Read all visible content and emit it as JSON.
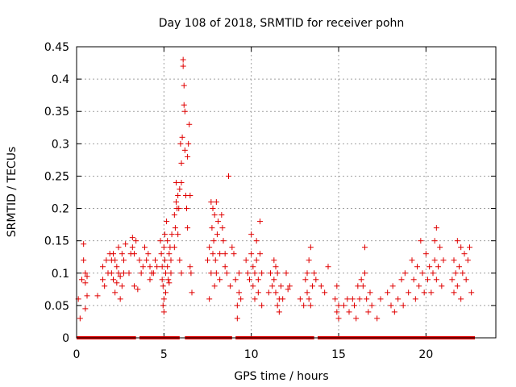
{
  "chart_data": {
    "type": "scatter",
    "title": "Day 108 of 2018, SRMTID for receiver pohn",
    "xlabel": "GPS time / hours",
    "ylabel": "SRMTID / TECUs",
    "xlim": [
      0,
      24
    ],
    "ylim": [
      0,
      0.45
    ],
    "x_ticks": [
      0,
      5,
      10,
      15,
      20
    ],
    "y_ticks": [
      0,
      0.05,
      0.1,
      0.15,
      0.2,
      0.25,
      0.3,
      0.35,
      0.4,
      0.45
    ],
    "grid": true,
    "marker": "+",
    "color": "#e00000",
    "series": [
      {
        "name": "SRMTID",
        "points": [
          [
            0.1,
            0.06
          ],
          [
            0.2,
            0.03
          ],
          [
            0.3,
            0.09
          ],
          [
            0.4,
            0.145
          ],
          [
            0.4,
            0.12
          ],
          [
            0.5,
            0.1
          ],
          [
            0.5,
            0.085
          ],
          [
            0.6,
            0.095
          ],
          [
            0.6,
            0.065
          ],
          [
            0.5,
            0.045
          ],
          [
            1.2,
            0.065
          ],
          [
            1.5,
            0.11
          ],
          [
            1.5,
            0.09
          ],
          [
            1.6,
            0.08
          ],
          [
            1.7,
            0.12
          ],
          [
            1.8,
            0.1
          ],
          [
            1.9,
            0.13
          ],
          [
            2.0,
            0.12
          ],
          [
            2.0,
            0.1
          ],
          [
            2.1,
            0.13
          ],
          [
            2.1,
            0.09
          ],
          [
            2.2,
            0.12
          ],
          [
            2.2,
            0.07
          ],
          [
            2.3,
            0.11
          ],
          [
            2.3,
            0.085
          ],
          [
            2.4,
            0.14
          ],
          [
            2.4,
            0.1
          ],
          [
            2.5,
            0.06
          ],
          [
            2.5,
            0.095
          ],
          [
            2.6,
            0.13
          ],
          [
            2.6,
            0.08
          ],
          [
            2.7,
            0.12
          ],
          [
            2.7,
            0.1
          ],
          [
            2.8,
            0.145
          ],
          [
            3.0,
            0.1
          ],
          [
            3.1,
            0.13
          ],
          [
            3.2,
            0.155
          ],
          [
            3.2,
            0.14
          ],
          [
            3.3,
            0.13
          ],
          [
            3.3,
            0.08
          ],
          [
            3.4,
            0.15
          ],
          [
            3.5,
            0.075
          ],
          [
            3.6,
            0.12
          ],
          [
            3.7,
            0.1
          ],
          [
            3.8,
            0.11
          ],
          [
            3.9,
            0.14
          ],
          [
            4.0,
            0.12
          ],
          [
            4.1,
            0.13
          ],
          [
            4.2,
            0.11
          ],
          [
            4.2,
            0.09
          ],
          [
            4.3,
            0.1
          ],
          [
            4.4,
            0.1
          ],
          [
            4.5,
            0.12
          ],
          [
            4.6,
            0.11
          ],
          [
            4.8,
            0.15
          ],
          [
            4.85,
            0.13
          ],
          [
            4.9,
            0.11
          ],
          [
            4.9,
            0.09
          ],
          [
            4.95,
            0.08
          ],
          [
            4.95,
            0.05
          ],
          [
            5.0,
            0.06
          ],
          [
            5.0,
            0.04
          ],
          [
            5.0,
            0.14
          ],
          [
            5.05,
            0.16
          ],
          [
            5.05,
            0.12
          ],
          [
            5.1,
            0.1
          ],
          [
            5.1,
            0.07
          ],
          [
            5.15,
            0.18
          ],
          [
            5.2,
            0.15
          ],
          [
            5.2,
            0.11
          ],
          [
            5.25,
            0.09
          ],
          [
            5.3,
            0.13
          ],
          [
            5.3,
            0.085
          ],
          [
            5.35,
            0.14
          ],
          [
            5.4,
            0.12
          ],
          [
            5.4,
            0.1
          ],
          [
            5.45,
            0.16
          ],
          [
            5.6,
            0.19
          ],
          [
            5.6,
            0.14
          ],
          [
            5.65,
            0.17
          ],
          [
            5.7,
            0.24
          ],
          [
            5.7,
            0.21
          ],
          [
            5.75,
            0.2
          ],
          [
            5.8,
            0.22
          ],
          [
            5.8,
            0.16
          ],
          [
            5.85,
            0.2
          ],
          [
            5.9,
            0.23
          ],
          [
            5.9,
            0.12
          ],
          [
            5.95,
            0.3
          ],
          [
            6.0,
            0.27
          ],
          [
            6.0,
            0.24
          ],
          [
            6.0,
            0.1
          ],
          [
            6.05,
            0.31
          ],
          [
            6.1,
            0.43
          ],
          [
            6.1,
            0.42
          ],
          [
            6.15,
            0.39
          ],
          [
            6.15,
            0.36
          ],
          [
            6.2,
            0.35
          ],
          [
            6.2,
            0.29
          ],
          [
            6.25,
            0.22
          ],
          [
            6.3,
            0.2
          ],
          [
            6.35,
            0.28
          ],
          [
            6.35,
            0.17
          ],
          [
            6.4,
            0.3
          ],
          [
            6.45,
            0.33
          ],
          [
            6.5,
            0.22
          ],
          [
            6.5,
            0.11
          ],
          [
            6.55,
            0.1
          ],
          [
            6.6,
            0.07
          ],
          [
            7.5,
            0.12
          ],
          [
            7.6,
            0.14
          ],
          [
            7.6,
            0.06
          ],
          [
            7.7,
            0.21
          ],
          [
            7.7,
            0.1
          ],
          [
            7.75,
            0.17
          ],
          [
            7.8,
            0.2
          ],
          [
            7.8,
            0.13
          ],
          [
            7.85,
            0.15
          ],
          [
            7.9,
            0.19
          ],
          [
            7.9,
            0.08
          ],
          [
            7.95,
            0.12
          ],
          [
            8.0,
            0.21
          ],
          [
            8.0,
            0.1
          ],
          [
            8.05,
            0.16
          ],
          [
            8.1,
            0.18
          ],
          [
            8.2,
            0.13
          ],
          [
            8.2,
            0.09
          ],
          [
            8.3,
            0.19
          ],
          [
            8.35,
            0.17
          ],
          [
            8.4,
            0.15
          ],
          [
            8.5,
            0.13
          ],
          [
            8.5,
            0.11
          ],
          [
            8.6,
            0.1
          ],
          [
            8.7,
            0.25
          ],
          [
            8.8,
            0.08
          ],
          [
            8.9,
            0.14
          ],
          [
            9.0,
            0.13
          ],
          [
            9.1,
            0.09
          ],
          [
            9.2,
            0.05
          ],
          [
            9.2,
            0.03
          ],
          [
            9.3,
            0.1
          ],
          [
            9.3,
            0.07
          ],
          [
            9.4,
            0.06
          ],
          [
            9.7,
            0.12
          ],
          [
            9.8,
            0.1
          ],
          [
            9.9,
            0.09
          ],
          [
            10.0,
            0.16
          ],
          [
            10.0,
            0.13
          ],
          [
            10.1,
            0.11
          ],
          [
            10.1,
            0.08
          ],
          [
            10.2,
            0.1
          ],
          [
            10.2,
            0.06
          ],
          [
            10.3,
            0.15
          ],
          [
            10.3,
            0.12
          ],
          [
            10.4,
            0.09
          ],
          [
            10.4,
            0.07
          ],
          [
            10.5,
            0.18
          ],
          [
            10.5,
            0.13
          ],
          [
            10.6,
            0.1
          ],
          [
            10.6,
            0.05
          ],
          [
            11.0,
            0.07
          ],
          [
            11.1,
            0.1
          ],
          [
            11.2,
            0.08
          ],
          [
            11.3,
            0.12
          ],
          [
            11.3,
            0.09
          ],
          [
            11.4,
            0.11
          ],
          [
            11.4,
            0.07
          ],
          [
            11.5,
            0.1
          ],
          [
            11.5,
            0.05
          ],
          [
            11.6,
            0.06
          ],
          [
            11.6,
            0.04
          ],
          [
            11.7,
            0.08
          ],
          [
            11.8,
            0.06
          ],
          [
            12.0,
            0.1
          ],
          [
            12.1,
            0.075
          ],
          [
            12.2,
            0.08
          ],
          [
            12.8,
            0.06
          ],
          [
            13.0,
            0.05
          ],
          [
            13.1,
            0.09
          ],
          [
            13.2,
            0.1
          ],
          [
            13.2,
            0.07
          ],
          [
            13.3,
            0.12
          ],
          [
            13.3,
            0.06
          ],
          [
            13.4,
            0.14
          ],
          [
            13.4,
            0.05
          ],
          [
            13.5,
            0.08
          ],
          [
            13.6,
            0.1
          ],
          [
            13.7,
            0.09
          ],
          [
            14.0,
            0.08
          ],
          [
            14.2,
            0.07
          ],
          [
            14.4,
            0.11
          ],
          [
            14.8,
            0.06
          ],
          [
            14.9,
            0.04
          ],
          [
            14.9,
            0.08
          ],
          [
            15.0,
            0.03
          ],
          [
            15.0,
            0.05
          ],
          [
            15.3,
            0.05
          ],
          [
            15.5,
            0.06
          ],
          [
            15.6,
            0.04
          ],
          [
            15.8,
            0.06
          ],
          [
            15.9,
            0.05
          ],
          [
            16.0,
            0.03
          ],
          [
            16.1,
            0.08
          ],
          [
            16.2,
            0.06
          ],
          [
            16.3,
            0.09
          ],
          [
            16.4,
            0.08
          ],
          [
            16.5,
            0.14
          ],
          [
            16.5,
            0.1
          ],
          [
            16.6,
            0.06
          ],
          [
            16.7,
            0.04
          ],
          [
            16.8,
            0.07
          ],
          [
            16.9,
            0.05
          ],
          [
            17.2,
            0.03
          ],
          [
            17.4,
            0.06
          ],
          [
            17.8,
            0.07
          ],
          [
            18.0,
            0.05
          ],
          [
            18.1,
            0.08
          ],
          [
            18.2,
            0.04
          ],
          [
            18.4,
            0.06
          ],
          [
            18.6,
            0.09
          ],
          [
            18.7,
            0.05
          ],
          [
            18.8,
            0.1
          ],
          [
            19.0,
            0.07
          ],
          [
            19.2,
            0.12
          ],
          [
            19.3,
            0.09
          ],
          [
            19.4,
            0.06
          ],
          [
            19.5,
            0.11
          ],
          [
            19.6,
            0.08
          ],
          [
            19.7,
            0.15
          ],
          [
            19.8,
            0.1
          ],
          [
            19.9,
            0.07
          ],
          [
            20.0,
            0.13
          ],
          [
            20.1,
            0.09
          ],
          [
            20.2,
            0.11
          ],
          [
            20.3,
            0.07
          ],
          [
            20.4,
            0.1
          ],
          [
            20.5,
            0.15
          ],
          [
            20.5,
            0.12
          ],
          [
            20.6,
            0.17
          ],
          [
            20.6,
            0.09
          ],
          [
            20.7,
            0.11
          ],
          [
            20.8,
            0.14
          ],
          [
            20.9,
            0.08
          ],
          [
            21.0,
            0.12
          ],
          [
            21.5,
            0.09
          ],
          [
            21.6,
            0.12
          ],
          [
            21.6,
            0.07
          ],
          [
            21.7,
            0.1
          ],
          [
            21.8,
            0.15
          ],
          [
            21.8,
            0.08
          ],
          [
            21.9,
            0.11
          ],
          [
            22.0,
            0.14
          ],
          [
            22.0,
            0.06
          ],
          [
            22.1,
            0.1
          ],
          [
            22.2,
            0.13
          ],
          [
            22.3,
            0.09
          ],
          [
            22.4,
            0.12
          ],
          [
            22.5,
            0.14
          ],
          [
            22.6,
            0.07
          ]
        ]
      }
    ],
    "zero_segments": [
      [
        0.0,
        3.4
      ],
      [
        3.6,
        5.9
      ],
      [
        6.2,
        8.9
      ],
      [
        9.1,
        13.6
      ],
      [
        13.8,
        22.8
      ]
    ]
  }
}
